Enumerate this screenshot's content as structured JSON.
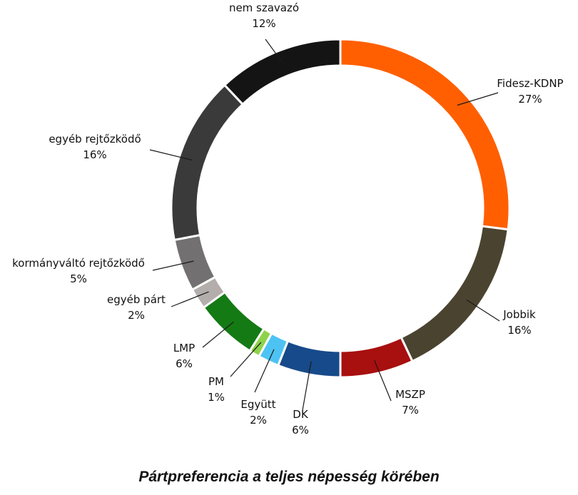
{
  "chart_data": {
    "type": "pie",
    "donut": true,
    "title": "Pártpreferencia a teljes népesség körében",
    "series": [
      {
        "name": "Fidesz-KDNP",
        "value": 27,
        "label": "27%",
        "color": "#FF5F00"
      },
      {
        "name": "Jobbik",
        "value": 16,
        "label": "16%",
        "color": "#4A4330"
      },
      {
        "name": "MSZP",
        "value": 7,
        "label": "7%",
        "color": "#A80F0F"
      },
      {
        "name": "DK",
        "value": 6,
        "label": "6%",
        "color": "#174A8A"
      },
      {
        "name": "Együtt",
        "value": 2,
        "label": "2%",
        "color": "#4DC3F4"
      },
      {
        "name": "PM",
        "value": 1,
        "label": "1%",
        "color": "#8ED24B"
      },
      {
        "name": "LMP",
        "value": 6,
        "label": "6%",
        "color": "#147A14"
      },
      {
        "name": "egyéb párt",
        "value": 2,
        "label": "2%",
        "color": "#B3AEAC"
      },
      {
        "name": "kormányváltó rejtőzködő",
        "value": 5,
        "label": "5%",
        "color": "#727070"
      },
      {
        "name": "egyéb rejtőzködő",
        "value": 16,
        "label": "16%",
        "color": "#3A3A3A"
      },
      {
        "name": "nem szavazó",
        "value": 12,
        "label": "12%",
        "color": "#141414"
      }
    ]
  }
}
